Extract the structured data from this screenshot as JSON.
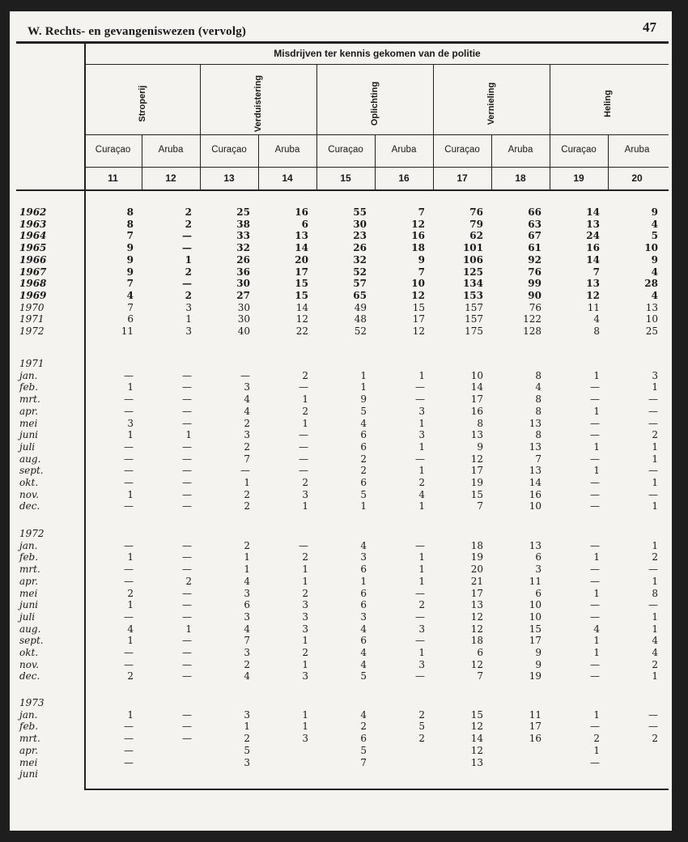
{
  "header": {
    "title": "W.  Rechts- en gevangeniswezen (vervolg)",
    "page_number": "47"
  },
  "table": {
    "super_header": "Misdrijven ter kennis gekomen van de politie",
    "groups": [
      "Stroperij",
      "Verduistering",
      "Oplichting",
      "Vernieling",
      "Heling"
    ],
    "regions": [
      "Curaçao",
      "Aruba",
      "Curaçao",
      "Aruba",
      "Curaçao",
      "Aruba",
      "Curaçao",
      "Aruba",
      "Curaçao",
      "Aruba"
    ],
    "column_numbers": [
      "11",
      "12",
      "13",
      "14",
      "15",
      "16",
      "17",
      "18",
      "19",
      "20"
    ],
    "annual": [
      {
        "label": "1962",
        "values": [
          "8",
          "2",
          "25",
          "16",
          "55",
          "7",
          "76",
          "66",
          "14",
          "9"
        ]
      },
      {
        "label": "1963",
        "values": [
          "8",
          "2",
          "38",
          "6",
          "30",
          "12",
          "79",
          "63",
          "13",
          "4"
        ]
      },
      {
        "label": "1964",
        "values": [
          "7",
          "—",
          "33",
          "13",
          "23",
          "16",
          "62",
          "67",
          "24",
          "5"
        ]
      },
      {
        "label": "1965",
        "values": [
          "9",
          "—",
          "32",
          "14",
          "26",
          "18",
          "101",
          "61",
          "16",
          "10"
        ]
      },
      {
        "label": "1966",
        "values": [
          "9",
          "1",
          "26",
          "20",
          "32",
          "9",
          "106",
          "92",
          "14",
          "9"
        ]
      },
      {
        "label": "1967",
        "values": [
          "9",
          "2",
          "36",
          "17",
          "52",
          "7",
          "125",
          "76",
          "7",
          "4"
        ]
      },
      {
        "label": "1968",
        "values": [
          "7",
          "—",
          "30",
          "15",
          "57",
          "10",
          "134",
          "99",
          "13",
          "28"
        ]
      },
      {
        "label": "1969",
        "values": [
          "4",
          "2",
          "27",
          "15",
          "65",
          "12",
          "153",
          "90",
          "12",
          "4"
        ]
      },
      {
        "label": "1970",
        "values": [
          "7",
          "3",
          "30",
          "14",
          "49",
          "15",
          "157",
          "76",
          "11",
          "13"
        ]
      },
      {
        "label": "1971",
        "values": [
          "6",
          "1",
          "30",
          "12",
          "48",
          "17",
          "157",
          "122",
          "4",
          "10"
        ]
      },
      {
        "label": "1972",
        "values": [
          "11",
          "3",
          "40",
          "22",
          "52",
          "12",
          "175",
          "128",
          "8",
          "25"
        ]
      }
    ],
    "monthly": [
      {
        "year": "1971",
        "rows": [
          {
            "label": "jan.",
            "values": [
              "—",
              "—",
              "—",
              "2",
              "1",
              "1",
              "10",
              "8",
              "1",
              "3"
            ]
          },
          {
            "label": "feb.",
            "values": [
              "1",
              "—",
              "3",
              "—",
              "1",
              "—",
              "14",
              "4",
              "—",
              "1"
            ]
          },
          {
            "label": "mrt.",
            "values": [
              "—",
              "—",
              "4",
              "1",
              "9",
              "—",
              "17",
              "8",
              "—",
              "—"
            ]
          },
          {
            "label": "apr.",
            "values": [
              "—",
              "—",
              "4",
              "2",
              "5",
              "3",
              "16",
              "8",
              "1",
              "—"
            ]
          },
          {
            "label": "mei",
            "values": [
              "3",
              "—",
              "2",
              "1",
              "4",
              "1",
              "8",
              "13",
              "—",
              "—"
            ]
          },
          {
            "label": "juni",
            "values": [
              "1",
              "1",
              "3",
              "—",
              "6",
              "3",
              "13",
              "8",
              "—",
              "2"
            ]
          },
          {
            "label": "juli",
            "values": [
              "—",
              "—",
              "2",
              "—",
              "6",
              "1",
              "9",
              "13",
              "1",
              "1"
            ]
          },
          {
            "label": "aug.",
            "values": [
              "—",
              "—",
              "7",
              "—",
              "2",
              "—",
              "12",
              "7",
              "—",
              "1"
            ]
          },
          {
            "label": "sept.",
            "values": [
              "—",
              "—",
              "—",
              "—",
              "2",
              "1",
              "17",
              "13",
              "1",
              "—"
            ]
          },
          {
            "label": "okt.",
            "values": [
              "—",
              "—",
              "1",
              "2",
              "6",
              "2",
              "19",
              "14",
              "—",
              "1"
            ]
          },
          {
            "label": "nov.",
            "values": [
              "1",
              "—",
              "2",
              "3",
              "5",
              "4",
              "15",
              "16",
              "—",
              "—"
            ]
          },
          {
            "label": "dec.",
            "values": [
              "—",
              "—",
              "2",
              "1",
              "1",
              "1",
              "7",
              "10",
              "—",
              "1"
            ]
          }
        ]
      },
      {
        "year": "1972",
        "rows": [
          {
            "label": "jan.",
            "values": [
              "—",
              "—",
              "2",
              "—",
              "4",
              "—",
              "18",
              "13",
              "—",
              "1"
            ]
          },
          {
            "label": "feb.",
            "values": [
              "1",
              "—",
              "1",
              "2",
              "3",
              "1",
              "19",
              "6",
              "1",
              "2"
            ]
          },
          {
            "label": "mrt.",
            "values": [
              "—",
              "—",
              "1",
              "1",
              "6",
              "1",
              "20",
              "3",
              "—",
              "—"
            ]
          },
          {
            "label": "apr.",
            "values": [
              "—",
              "2",
              "4",
              "1",
              "1",
              "1",
              "21",
              "11",
              "—",
              "1"
            ]
          },
          {
            "label": "mei",
            "values": [
              "2",
              "—",
              "3",
              "2",
              "6",
              "—",
              "17",
              "6",
              "1",
              "8"
            ]
          },
          {
            "label": "juni",
            "values": [
              "1",
              "—",
              "6",
              "3",
              "6",
              "2",
              "13",
              "10",
              "—",
              "—"
            ]
          },
          {
            "label": "juli",
            "values": [
              "—",
              "—",
              "3",
              "3",
              "3",
              "—",
              "12",
              "10",
              "—",
              "1"
            ]
          },
          {
            "label": "aug.",
            "values": [
              "4",
              "1",
              "4",
              "3",
              "4",
              "3",
              "12",
              "15",
              "4",
              "1"
            ]
          },
          {
            "label": "sept.",
            "values": [
              "1",
              "—",
              "7",
              "1",
              "6",
              "—",
              "18",
              "17",
              "1",
              "4"
            ]
          },
          {
            "label": "okt.",
            "values": [
              "—",
              "—",
              "3",
              "2",
              "4",
              "1",
              "6",
              "9",
              "1",
              "4"
            ]
          },
          {
            "label": "nov.",
            "values": [
              "—",
              "—",
              "2",
              "1",
              "4",
              "3",
              "12",
              "9",
              "—",
              "2"
            ]
          },
          {
            "label": "dec.",
            "values": [
              "2",
              "—",
              "4",
              "3",
              "5",
              "—",
              "7",
              "19",
              "—",
              "1"
            ]
          }
        ]
      },
      {
        "year": "1973",
        "rows": [
          {
            "label": "jan.",
            "values": [
              "1",
              "—",
              "3",
              "1",
              "4",
              "2",
              "15",
              "11",
              "1",
              "—"
            ]
          },
          {
            "label": "feb.",
            "values": [
              "—",
              "—",
              "1",
              "1",
              "2",
              "5",
              "12",
              "17",
              "—",
              "—"
            ]
          },
          {
            "label": "mrt.",
            "values": [
              "—",
              "—",
              "2",
              "3",
              "6",
              "2",
              "14",
              "16",
              "2",
              "2"
            ]
          },
          {
            "label": "apr.",
            "values": [
              "—",
              "",
              "5",
              "",
              "5",
              "",
              "12",
              "",
              "1",
              ""
            ]
          },
          {
            "label": "mei",
            "values": [
              "—",
              "",
              "3",
              "",
              "7",
              "",
              "13",
              "",
              "—",
              ""
            ]
          },
          {
            "label": "juni",
            "values": [
              "",
              "",
              "",
              "",
              "",
              "",
              "",
              "",
              "",
              ""
            ]
          }
        ]
      }
    ]
  }
}
